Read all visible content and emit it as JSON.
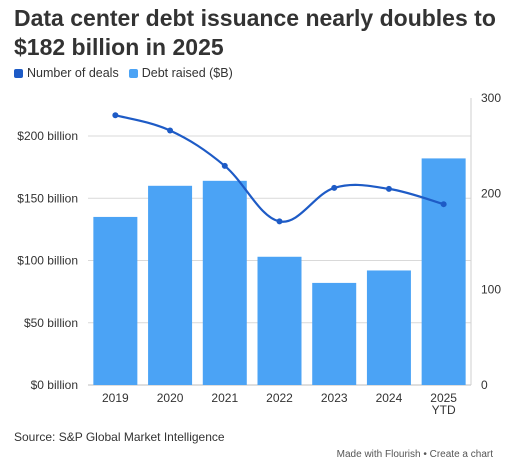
{
  "title": "Data center debt issuance nearly doubles to $182 billion in 2025",
  "source": "Source: S&P Global Market Intelligence",
  "credit": "Made with Flourish • Create a chart",
  "colors": {
    "line": "#1e5bc6",
    "bar": "#4ba3f5",
    "grid": "#d9d9d9",
    "text": "#333333"
  },
  "chart_data": {
    "type": "bar",
    "categories": [
      "2019",
      "2020",
      "2021",
      "2022",
      "2023",
      "2024",
      "2025 YTD"
    ],
    "category_lines": [
      [
        "2019"
      ],
      [
        "2020"
      ],
      [
        "2021"
      ],
      [
        "2022"
      ],
      [
        "2023"
      ],
      [
        "2024"
      ],
      [
        "2025",
        "YTD"
      ]
    ],
    "series": [
      {
        "name": "Debt raised ($B)",
        "type": "bar",
        "axis": "left",
        "values": [
          135,
          160,
          164,
          103,
          82,
          92,
          182
        ]
      },
      {
        "name": "Number of deals",
        "type": "line",
        "axis": "right",
        "values": [
          282,
          266,
          229,
          171,
          206,
          205,
          189
        ]
      }
    ],
    "y_left": {
      "lim": [
        0,
        200
      ],
      "ticks": [
        0,
        50,
        100,
        150,
        200
      ],
      "tick_labels": [
        "$0 billion",
        "$50 billion",
        "$100 billion",
        "$150 billion",
        "$200 billion"
      ]
    },
    "y_right": {
      "lim": [
        0,
        300
      ],
      "ticks": [
        0,
        100,
        200,
        300
      ],
      "tick_labels": [
        "0",
        "100",
        "200",
        "300"
      ]
    },
    "legend": {
      "position": "top-left",
      "items": [
        "Number of deals",
        "Debt raised ($B)"
      ]
    },
    "grid": true
  }
}
